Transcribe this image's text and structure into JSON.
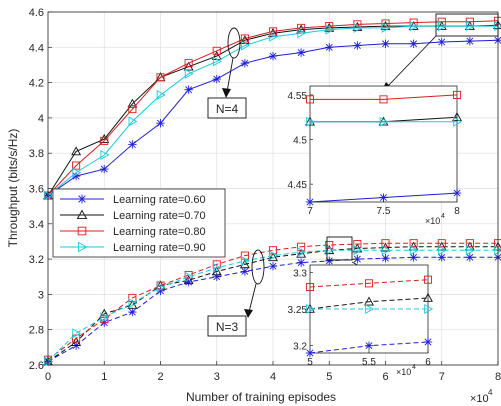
{
  "chart_data": {
    "type": "line",
    "xlabel": "Number of training episodes",
    "ylabel": "Throughput (bits/s/Hz)",
    "x_multiplier_label": "×10",
    "x_multiplier_exp": "4",
    "xlim": [
      0,
      80000
    ],
    "ylim": [
      2.6,
      4.6
    ],
    "grid": true,
    "legend_position": "middle-left",
    "x": [
      0,
      5000,
      10000,
      15000,
      20000,
      25000,
      30000,
      35000,
      40000,
      45000,
      50000,
      55000,
      60000,
      65000,
      70000,
      75000,
      80000
    ],
    "x_ticks": [
      0,
      10000,
      20000,
      30000,
      40000,
      50000,
      60000,
      70000,
      80000
    ],
    "x_tick_labels": [
      "0",
      "1",
      "2",
      "3",
      "4",
      "5",
      "6",
      "7",
      "8"
    ],
    "y_ticks": [
      2.6,
      2.8,
      3.0,
      3.2,
      3.4,
      3.6,
      3.8,
      4.0,
      4.2,
      4.4,
      4.6
    ],
    "y_tick_labels": [
      "2.6",
      "2.8",
      "3",
      "3.2",
      "3.4",
      "3.6",
      "3.8",
      "4",
      "4.2",
      "4.4",
      "4.6"
    ],
    "annotations": [
      "N=4",
      "N=3"
    ],
    "series": [
      {
        "name": "Learning rate=0.60",
        "color": "#1f1fd6",
        "marker": "asterisk",
        "group": "N=4",
        "style": "solid",
        "values": [
          3.56,
          3.67,
          3.71,
          3.85,
          3.97,
          4.16,
          4.22,
          4.31,
          4.35,
          4.37,
          4.4,
          4.41,
          4.42,
          4.42,
          4.43,
          4.435,
          4.44
        ]
      },
      {
        "name": "Learning rate=0.70",
        "color": "#111111",
        "marker": "triangle-up",
        "group": "N=4",
        "style": "solid",
        "values": [
          3.56,
          3.81,
          3.88,
          4.08,
          4.23,
          4.29,
          4.35,
          4.44,
          4.48,
          4.5,
          4.51,
          4.515,
          4.52,
          4.52,
          4.52,
          4.52,
          4.525
        ]
      },
      {
        "name": "Learning rate=0.80",
        "color": "#d81e1e",
        "marker": "square",
        "group": "N=4",
        "style": "solid",
        "values": [
          3.56,
          3.73,
          3.87,
          4.05,
          4.23,
          4.31,
          4.38,
          4.45,
          4.49,
          4.51,
          4.52,
          4.53,
          4.535,
          4.54,
          4.545,
          4.545,
          4.55
        ]
      },
      {
        "name": "Learning rate=0.90",
        "color": "#19c9e0",
        "marker": "triangle-right",
        "group": "N=4",
        "style": "solid",
        "values": [
          3.56,
          3.69,
          3.79,
          3.98,
          4.13,
          4.25,
          4.32,
          4.41,
          4.46,
          4.48,
          4.5,
          4.51,
          4.51,
          4.52,
          4.52,
          4.52,
          4.52
        ]
      },
      {
        "color": "#1f1fd6",
        "marker": "asterisk",
        "group": "N=3",
        "style": "dashed",
        "values": [
          2.62,
          2.71,
          2.84,
          2.9,
          3.02,
          3.07,
          3.1,
          3.13,
          3.16,
          3.18,
          3.19,
          3.2,
          3.205,
          3.21,
          3.21,
          3.21,
          3.21
        ]
      },
      {
        "color": "#111111",
        "marker": "triangle-up",
        "group": "N=3",
        "style": "dashed",
        "values": [
          2.62,
          2.73,
          2.89,
          2.94,
          3.05,
          3.08,
          3.13,
          3.17,
          3.21,
          3.23,
          3.25,
          3.26,
          3.265,
          3.27,
          3.27,
          3.27,
          3.27
        ]
      },
      {
        "color": "#d81e1e",
        "marker": "square",
        "group": "N=3",
        "style": "dashed",
        "values": [
          2.63,
          2.75,
          2.86,
          2.98,
          3.05,
          3.11,
          3.17,
          3.22,
          3.25,
          3.27,
          3.28,
          3.285,
          3.29,
          3.29,
          3.29,
          3.29,
          3.29
        ]
      },
      {
        "color": "#19c9e0",
        "marker": "triangle-right",
        "group": "N=3",
        "style": "dashed",
        "values": [
          2.62,
          2.78,
          2.87,
          2.95,
          3.04,
          3.1,
          3.15,
          3.19,
          3.22,
          3.24,
          3.25,
          3.25,
          3.25,
          3.25,
          3.25,
          3.25,
          3.25
        ]
      }
    ],
    "insets": [
      {
        "group": "N=4",
        "xlim": [
          70000,
          80000
        ],
        "ylim": [
          4.43,
          4.56
        ],
        "x_tick_labels": [
          "7",
          "7.5",
          "8"
        ],
        "x_ticks": [
          70000,
          75000,
          80000
        ],
        "y_tick_labels": [
          "4.45",
          "4.5",
          "4.55"
        ],
        "y_ticks": [
          4.45,
          4.5,
          4.55
        ],
        "x_multiplier_label": "×10",
        "x_multiplier_exp": "4"
      },
      {
        "group": "N=3",
        "xlim": [
          50000,
          60000
        ],
        "ylim": [
          3.19,
          3.31
        ],
        "x_tick_labels": [
          "5",
          "5.5",
          "6"
        ],
        "x_ticks": [
          50000,
          55000,
          60000
        ],
        "y_tick_labels": [
          "3.2",
          "3.25",
          "3.3"
        ],
        "y_ticks": [
          3.2,
          3.25,
          3.3
        ],
        "x_multiplier_label": "×10",
        "x_multiplier_exp": "4"
      }
    ]
  }
}
